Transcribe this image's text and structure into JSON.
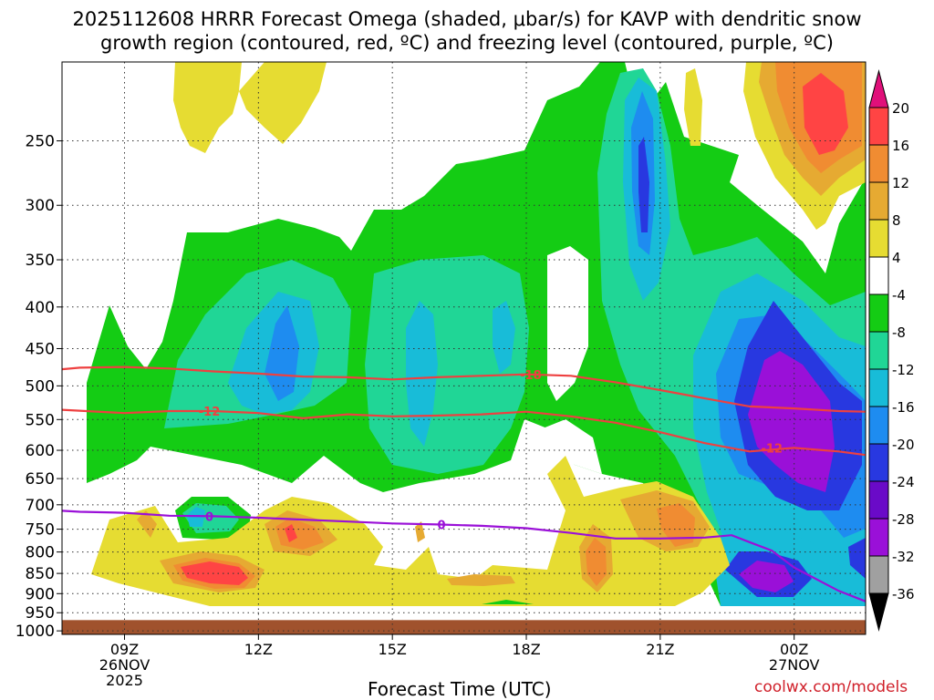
{
  "title_line1": "2025112608 HRRR Forecast Omega (shaded, μbar/s) for KAVP with dendritic snow",
  "title_line2": "growth region (contoured, red, ºC) and freezing level (contoured, purple, ºC)",
  "credit": "coolwx.com/models",
  "chart_data": {
    "type": "time-height contour",
    "xlabel": "Forecast Time (UTC)",
    "ylabel": "",
    "x_range_hours": [
      7.6,
      25.6
    ],
    "y_range_hPa": [
      200,
      1010
    ],
    "y_scale": "log-pressure, inverted",
    "y_ticks": [
      250,
      300,
      350,
      400,
      450,
      500,
      550,
      600,
      650,
      700,
      750,
      800,
      850,
      900,
      950,
      1000
    ],
    "x_ticks": [
      {
        "hour": 9,
        "lines": [
          "09Z",
          "26NOV",
          "2025"
        ]
      },
      {
        "hour": 12,
        "lines": [
          "12Z"
        ]
      },
      {
        "hour": 15,
        "lines": [
          "15Z"
        ]
      },
      {
        "hour": 18,
        "lines": [
          "18Z"
        ]
      },
      {
        "hour": 21,
        "lines": [
          "21Z"
        ]
      },
      {
        "hour": 24,
        "lines": [
          "00Z",
          "27NOV"
        ]
      }
    ],
    "grid": true,
    "legend": "right colorbar",
    "colorbar_levels": [
      -36,
      -32,
      -28,
      -24,
      -20,
      -16,
      -12,
      -8,
      -4,
      4,
      8,
      12,
      16,
      20
    ],
    "colorbar_colors": [
      "#000000",
      "#a0a0a0",
      "#9a10d8",
      "#6a0ac8",
      "#2838e0",
      "#1e8cf0",
      "#18bcd8",
      "#20d696",
      "#14cc14",
      "#ffffff",
      "#e6dc32",
      "#e6aa32",
      "#f08c32",
      "#ff4444",
      "#e0107a"
    ],
    "ground_pressure_hPa": 970,
    "ground_color": "#a0522d",
    "contours": [
      {
        "label": "-18",
        "color": "#ee4040",
        "label_at_hour": 18.1,
        "points": [
          [
            7.6,
            477
          ],
          [
            8,
            475
          ],
          [
            9,
            474
          ],
          [
            10,
            476
          ],
          [
            11,
            480
          ],
          [
            12,
            483
          ],
          [
            13,
            487
          ],
          [
            14,
            488
          ],
          [
            15,
            491
          ],
          [
            16,
            488
          ],
          [
            17,
            486
          ],
          [
            18,
            484
          ],
          [
            19,
            486
          ],
          [
            20,
            495
          ],
          [
            21,
            506
          ],
          [
            22,
            518
          ],
          [
            23,
            530
          ],
          [
            24,
            533
          ],
          [
            25,
            537
          ],
          [
            25.6,
            538
          ]
        ]
      },
      {
        "label": "-12",
        "color": "#ee4040",
        "label_at_hour": 10.9,
        "points": [
          [
            7.6,
            535
          ],
          [
            9,
            540
          ],
          [
            10,
            537
          ],
          [
            11,
            537
          ],
          [
            12,
            540
          ],
          [
            13,
            548
          ],
          [
            14,
            542
          ],
          [
            15,
            545
          ],
          [
            16,
            544
          ],
          [
            17,
            542
          ],
          [
            18,
            538
          ],
          [
            19,
            545
          ],
          [
            20,
            555
          ],
          [
            21,
            570
          ],
          [
            22,
            588
          ],
          [
            23,
            602
          ],
          [
            24,
            596
          ],
          [
            25,
            602
          ],
          [
            25.6,
            608
          ]
        ]
      },
      {
        "label": "-12",
        "color": "#ee4040",
        "label_at_hour": 23.5,
        "points": [
          [
            23.3,
            597
          ],
          [
            23.5,
            596
          ]
        ]
      },
      {
        "label": "0",
        "color": "#9a10d8",
        "label_at_hour": 10.9,
        "points": [
          [
            7.6,
            712
          ],
          [
            8,
            714
          ],
          [
            9,
            716
          ],
          [
            10,
            722
          ],
          [
            11,
            723
          ],
          [
            12,
            726
          ],
          [
            13,
            730
          ],
          [
            14,
            734
          ],
          [
            15,
            738
          ],
          [
            16,
            740
          ],
          [
            17,
            743
          ],
          [
            18,
            748
          ],
          [
            19,
            758
          ],
          [
            20,
            770
          ],
          [
            21,
            770
          ],
          [
            22,
            768
          ],
          [
            22.6,
            763
          ],
          [
            23,
            778
          ],
          [
            23.5,
            797
          ],
          [
            24,
            836
          ],
          [
            25,
            893
          ],
          [
            25.6,
            920
          ]
        ]
      },
      {
        "label": "0",
        "color": "#9a10d8",
        "label_at_hour": 16.1,
        "points": [
          [
            16.1,
            740
          ],
          [
            16.2,
            740
          ]
        ]
      }
    ]
  }
}
